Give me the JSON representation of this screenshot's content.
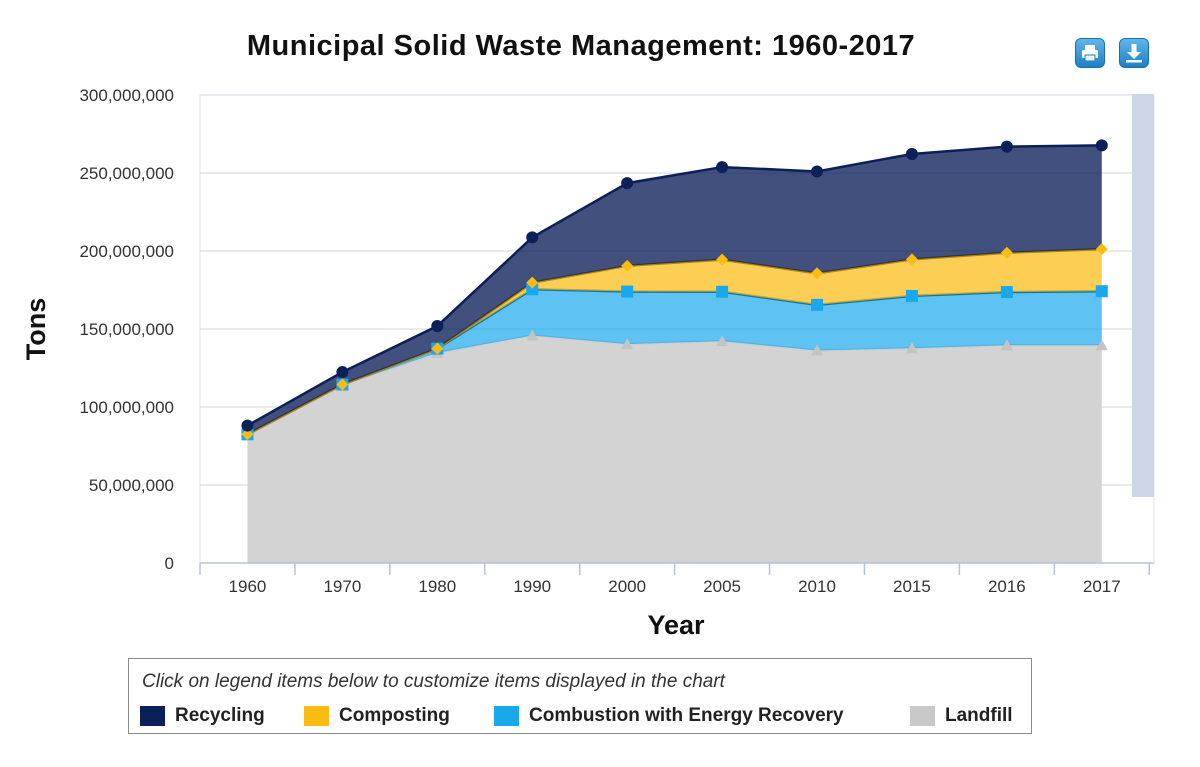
{
  "toolbar": {
    "print_icon": "print-icon",
    "download_icon": "download-icon"
  },
  "legend": {
    "note": "Click on legend items below to customize items displayed in the chart",
    "items": [
      {
        "label": "Recycling",
        "color": "#0b1f59"
      },
      {
        "label": "Composting",
        "color": "#fbbc12"
      },
      {
        "label": "Combustion with Energy Recovery",
        "color": "#1aa8ec"
      },
      {
        "label": "Landfill",
        "color": "#c8c8c8"
      }
    ]
  },
  "chart_data": {
    "type": "area",
    "stacked": true,
    "title": "Municipal Solid Waste Management: 1960-2017",
    "xlabel": "Year",
    "ylabel": "Tons",
    "categories": [
      "1960",
      "1970",
      "1980",
      "1990",
      "2000",
      "2005",
      "2010",
      "2015",
      "2016",
      "2017"
    ],
    "ylim": [
      0,
      300000000
    ],
    "yticks": [
      0,
      50000000,
      100000000,
      150000000,
      200000000,
      250000000,
      300000000
    ],
    "ytick_labels": [
      "0",
      "50,000,000",
      "100,000,000",
      "150,000,000",
      "200,000,000",
      "250,000,000",
      "300,000,000"
    ],
    "grid": true,
    "legend_position": "bottom",
    "series": [
      {
        "name": "Landfill",
        "color": "#d3d3d3",
        "marker": "triangle",
        "values": [
          82500000,
          114000000,
          134700000,
          145800000,
          140300000,
          142200000,
          136200000,
          137700000,
          139600000,
          139600000
        ]
      },
      {
        "name": "Combustion with Energy Recovery",
        "color": "#1aa8ec",
        "marker": "square",
        "values": [
          0,
          400000,
          2700000,
          29700000,
          33700000,
          31700000,
          29300000,
          33500000,
          34100000,
          34600000
        ]
      },
      {
        "name": "Composting",
        "color": "#fbbc12",
        "marker": "diamond",
        "values": [
          0,
          0,
          0,
          4200000,
          16500000,
          20600000,
          20200000,
          23400000,
          25200000,
          27000000
        ]
      },
      {
        "name": "Recycling",
        "color": "#0b1f59",
        "marker": "circle",
        "values": [
          5600000,
          8000000,
          14500000,
          29000000,
          53000000,
          59300000,
          65300000,
          67600000,
          68000000,
          66500000
        ]
      }
    ]
  }
}
